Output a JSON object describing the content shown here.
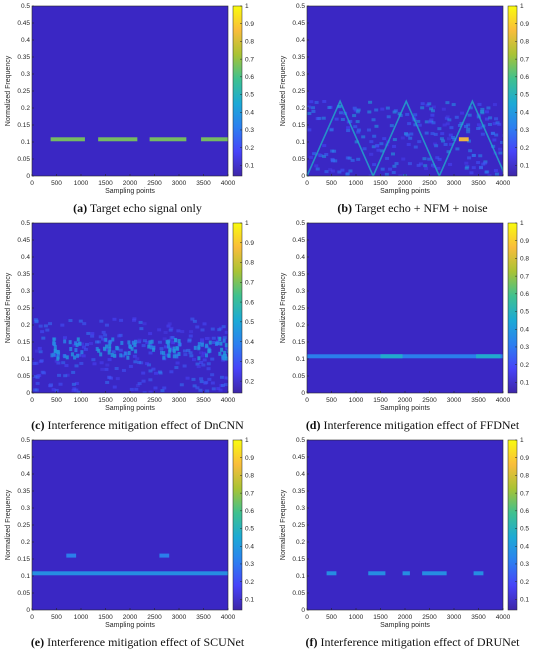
{
  "axis": {
    "xlabel": "Sampling points",
    "ylabel": "Normalized Frequency",
    "x_ticks": [
      "0",
      "500",
      "1000",
      "1500",
      "2000",
      "2500",
      "3000",
      "3500",
      "4000"
    ],
    "y_ticks": [
      "0",
      "0.05",
      "0.1",
      "0.15",
      "0.2",
      "0.25",
      "0.3",
      "0.35",
      "0.4",
      "0.45",
      "0.5"
    ]
  },
  "colors": {
    "background": "#3a27c4",
    "colormap": [
      "#3e26a8",
      "#4743f8",
      "#2c7ff0",
      "#1caad5",
      "#3fc18f",
      "#a9c334",
      "#f9bd3b",
      "#f9fb0e"
    ]
  },
  "chart_data": [
    {
      "type": "heatmap",
      "id": "a",
      "caption_label": "(a)",
      "caption_text": " Target echo signal only",
      "xlim": [
        0,
        4000
      ],
      "ylim": [
        0,
        0.5
      ],
      "colorbar_ticks": [
        "0.1",
        "0.2",
        "0.3",
        "0.4",
        "0.5",
        "0.6",
        "0.7",
        "0.8",
        "0.9",
        "1"
      ],
      "features": [
        {
          "kind": "band",
          "y": 0.108,
          "x_segments": [
            [
              380,
              1080
            ],
            [
              1350,
              2150
            ],
            [
              2400,
              3150
            ],
            [
              3450,
              4000
            ]
          ],
          "intensity": 0.65
        }
      ]
    },
    {
      "type": "heatmap",
      "id": "b",
      "caption_label": "(b)",
      "caption_text": " Target echo + NFM + noise",
      "xlim": [
        0,
        4000
      ],
      "ylim": [
        0,
        0.5
      ],
      "colorbar_ticks": [
        "0.1",
        "0.2",
        "0.3",
        "0.4",
        "0.5",
        "0.6",
        "0.7",
        "0.8",
        "0.9",
        "1"
      ],
      "features": [
        {
          "kind": "region",
          "y_range": [
            0.0,
            0.22
          ],
          "intensity": 0.3
        },
        {
          "kind": "sweeps",
          "y_range": [
            0.0,
            0.22
          ],
          "period": 1350,
          "intensity": 0.45
        },
        {
          "kind": "band",
          "y": 0.108,
          "x_segments": [
            [
              3100,
              3300
            ]
          ],
          "intensity": 0.85
        }
      ]
    },
    {
      "type": "heatmap",
      "id": "c",
      "caption_label": "(c)",
      "caption_text": " Interference mitigation effect of DnCNN",
      "xlim": [
        0,
        4000
      ],
      "ylim": [
        0,
        0.5
      ],
      "colorbar_ticks": [
        "0.2",
        "0.3",
        "0.4",
        "0.5",
        "0.6",
        "0.7",
        "0.8",
        "0.9",
        "1"
      ],
      "features": [
        {
          "kind": "region",
          "y_range": [
            0.0,
            0.22
          ],
          "intensity": 0.18
        },
        {
          "kind": "spots",
          "y_range": [
            0.1,
            0.16
          ],
          "x_segments": [
            [
              300,
              1000
            ],
            [
              1300,
              2100
            ],
            [
              2300,
              3000
            ],
            [
              3300,
              4000
            ]
          ],
          "intensity": 0.3
        }
      ]
    },
    {
      "type": "heatmap",
      "id": "d",
      "caption_label": "(d)",
      "caption_text": " Interference mitigation effect of FFDNet",
      "xlim": [
        0,
        4000
      ],
      "ylim": [
        0,
        0.5
      ],
      "colorbar_ticks": [
        "0.1",
        "0.2",
        "0.3",
        "0.4",
        "0.5",
        "0.6",
        "0.7",
        "0.8",
        "0.9",
        "1"
      ],
      "features": [
        {
          "kind": "band",
          "y": 0.108,
          "x_segments": [
            [
              0,
              4000
            ]
          ],
          "intensity": 0.3
        },
        {
          "kind": "band",
          "y": 0.108,
          "x_segments": [
            [
              1500,
              1950
            ],
            [
              3450,
              3950
            ]
          ],
          "intensity": 0.45
        }
      ]
    },
    {
      "type": "heatmap",
      "id": "e",
      "caption_label": "(e)",
      "caption_text": " Interference mitigation effect of SCUNet",
      "xlim": [
        0,
        4000
      ],
      "ylim": [
        0,
        0.5
      ],
      "colorbar_ticks": [
        "0.1",
        "0.2",
        "0.3",
        "0.4",
        "0.5",
        "0.6",
        "0.7",
        "0.8",
        "0.9",
        "1"
      ],
      "features": [
        {
          "kind": "band",
          "y": 0.108,
          "x_segments": [
            [
              0,
              4000
            ]
          ],
          "intensity": 0.35
        },
        {
          "kind": "band",
          "y": 0.16,
          "x_segments": [
            [
              700,
              900
            ],
            [
              2600,
              2800
            ]
          ],
          "intensity": 0.3
        }
      ]
    },
    {
      "type": "heatmap",
      "id": "f",
      "caption_label": "(f)",
      "caption_text": " Interference mitigation effect of DRUNet",
      "xlim": [
        0,
        4000
      ],
      "ylim": [
        0,
        0.5
      ],
      "colorbar_ticks": [
        "0.1",
        "0.2",
        "0.3",
        "0.4",
        "0.5",
        "0.6",
        "0.7",
        "0.8",
        "0.9",
        "1"
      ],
      "features": [
        {
          "kind": "band",
          "y": 0.108,
          "x_segments": [
            [
              400,
              600
            ],
            [
              1250,
              1600
            ],
            [
              1950,
              2100
            ],
            [
              2350,
              2850
            ],
            [
              3400,
              3600
            ]
          ],
          "intensity": 0.35
        }
      ]
    }
  ]
}
